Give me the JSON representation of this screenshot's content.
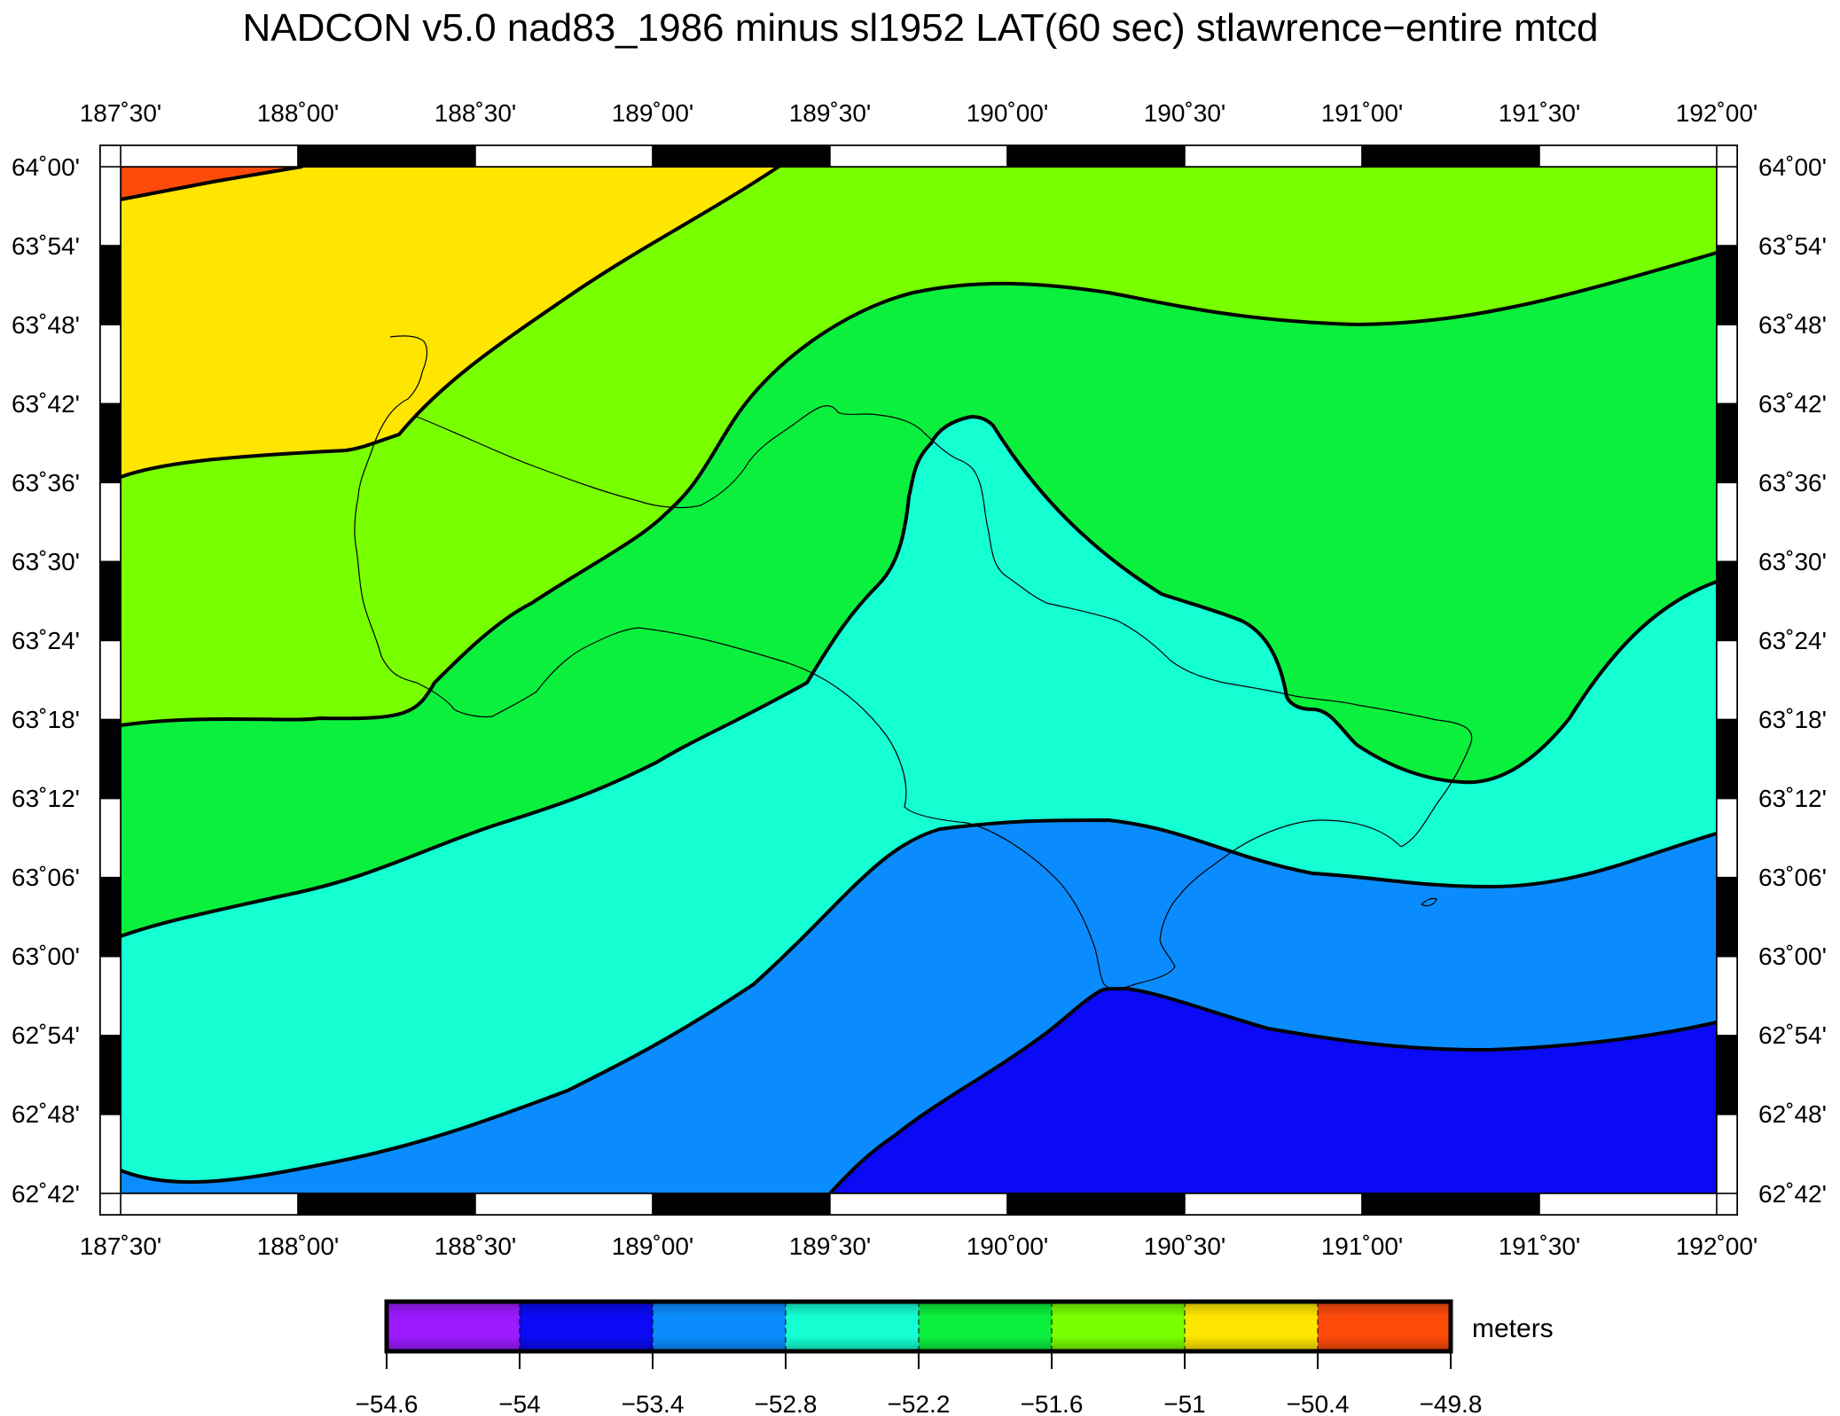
{
  "title": "NADCON v5.0 nad83_1986 minus sl1952 LAT(60 sec) stlawrence−entire mtcd",
  "axes": {
    "lon_ticks": [
      "187˚30'",
      "188˚00'",
      "188˚30'",
      "189˚00'",
      "189˚30'",
      "190˚00'",
      "190˚30'",
      "191˚00'",
      "191˚30'",
      "192˚00'"
    ],
    "lat_ticks": [
      "64˚00'",
      "63˚54'",
      "63˚48'",
      "63˚42'",
      "63˚36'",
      "63˚30'",
      "63˚24'",
      "63˚18'",
      "63˚12'",
      "63˚06'",
      "63˚00'",
      "62˚54'",
      "62˚48'",
      "62˚42'"
    ]
  },
  "colorbar": {
    "unit": "meters",
    "labels": [
      "−54.6",
      "−54",
      "−53.4",
      "−52.8",
      "−52.2",
      "−51.6",
      "−51",
      "−50.4",
      "−49.8"
    ],
    "colors": [
      "#9b1aff",
      "#0a0af5",
      "#0a8cff",
      "#14ffd2",
      "#0af03c",
      "#78ff00",
      "#ffe600",
      "#ff4b0a"
    ]
  },
  "zone_colors": {
    "orange": "#ff4b0a",
    "yellow": "#ffe600",
    "yellow_green": "#78ff00",
    "green": "#0af03c",
    "cyan": "#14ffd2",
    "blue": "#0a8cff",
    "deep_blue": "#0a0af5"
  }
}
